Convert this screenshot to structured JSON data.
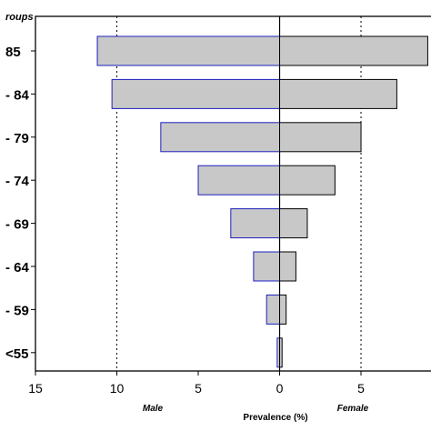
{
  "chart_data": {
    "type": "bar",
    "orientation": "horizontal",
    "layout": "population-pyramid",
    "corner_label": "roups",
    "categories": [
      "85",
      "84",
      "79",
      "74",
      "69",
      "64",
      "59",
      "<55"
    ],
    "category_labels": [
      "85",
      "- 84",
      "- 79",
      "- 74",
      "- 69",
      "- 64",
      "- 59",
      "<55"
    ],
    "series": [
      {
        "name": "Male",
        "values": [
          11.2,
          10.3,
          7.3,
          5.0,
          3.0,
          1.6,
          0.8,
          0.15
        ]
      },
      {
        "name": "Female",
        "values": [
          9.1,
          7.2,
          5.0,
          3.4,
          1.7,
          1.0,
          0.4,
          0.15
        ]
      }
    ],
    "xlabel": "Prevalence (%)",
    "side_labels": {
      "left": "Male",
      "right": "Female"
    },
    "x_ticks": [
      {
        "value": -15,
        "label": "15"
      },
      {
        "value": -10,
        "label": "10"
      },
      {
        "value": -5,
        "label": "5"
      },
      {
        "value": 0,
        "label": "0"
      },
      {
        "value": 5,
        "label": "5"
      }
    ],
    "xlim": [
      -15,
      9.3
    ],
    "reference_lines": [
      -10,
      0,
      5
    ],
    "grid": false,
    "colors": {
      "bar_fill": "#c8c8c8",
      "male_edge": "#1f1fbf",
      "female_edge": "#000000"
    }
  }
}
